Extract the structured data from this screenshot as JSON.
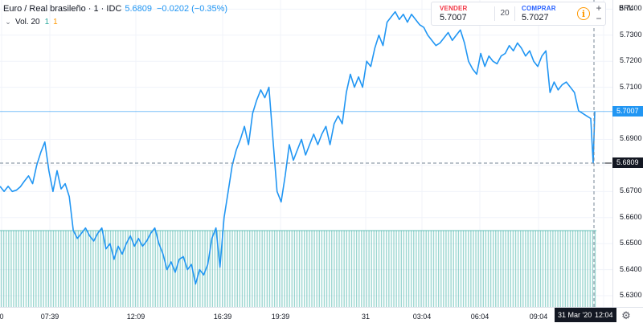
{
  "legend": {
    "symbol_title": "Euro / Real brasileño · 1 · IDC",
    "last_price": "5.6809",
    "change": "−0.0202 (−0.35%)",
    "volume_label": "Vol. 20",
    "volume_value_1": "1",
    "volume_value_2": "1"
  },
  "trade_box": {
    "sell_label": "VENDER",
    "sell_price": "5.7007",
    "quantity": "20",
    "buy_label": "COMPRAR",
    "buy_price": "5.7027"
  },
  "currency": "BRL",
  "last_price_tag": "5.7007",
  "crosshair_price_tag": "5.6809",
  "crosshair_date_tag": "31 Mar '20",
  "crosshair_time_tag": "12:04",
  "colors": {
    "line": "#2196f3",
    "volume": "#26a69a",
    "sell": "#f23645",
    "buy": "#2962ff",
    "info": "#ff9800"
  },
  "chart_data": {
    "type": "line",
    "title": "",
    "xlabel": "",
    "ylabel": "",
    "ylim": [
      5.6257,
      5.7435
    ],
    "y_ticks": [
      "5.7400",
      "5.7300",
      "5.7200",
      "5.7100",
      "5.6900",
      "5.6800",
      "5.6700",
      "5.6600",
      "5.6500",
      "5.6400",
      "5.6300"
    ],
    "x_ticks": [
      "0",
      "07:39",
      "12:09",
      "16:39",
      "19:39",
      "31",
      "03:04",
      "06:04",
      "09:04",
      "12:04"
    ],
    "grid": true,
    "series": [
      {
        "values": [
          5.672,
          5.67,
          5.672,
          5.67,
          5.6705,
          5.6718,
          5.674,
          5.676,
          5.673,
          5.68,
          5.685,
          5.689,
          5.678,
          5.67,
          5.678,
          5.671,
          5.673,
          5.668,
          5.655,
          5.652,
          5.654,
          5.656,
          5.653,
          5.651,
          5.654,
          5.656,
          5.648,
          5.65,
          5.644,
          5.649,
          5.646,
          5.65,
          5.653,
          5.649,
          5.652,
          5.649,
          5.651,
          5.654,
          5.656,
          5.65,
          5.646,
          5.64,
          5.643,
          5.639,
          5.644,
          5.645,
          5.64,
          5.642,
          5.6345,
          5.64,
          5.638,
          5.642,
          5.652,
          5.656,
          5.641,
          5.66,
          5.67,
          5.68,
          5.686,
          5.69,
          5.695,
          5.688,
          5.7,
          5.705,
          5.709,
          5.706,
          5.71,
          5.69,
          5.67,
          5.666,
          5.676,
          5.688,
          5.682,
          5.686,
          5.69,
          5.684,
          5.688,
          5.692,
          5.688,
          5.692,
          5.695,
          5.688,
          5.696,
          5.699,
          5.696,
          5.708,
          5.715,
          5.71,
          5.714,
          5.71,
          5.72,
          5.718,
          5.725,
          5.73,
          5.726,
          5.735,
          5.737,
          5.739,
          5.736,
          5.738,
          5.735,
          5.738,
          5.736,
          5.734,
          5.733,
          5.73,
          5.728,
          5.726,
          5.727,
          5.729,
          5.731,
          5.728,
          5.73,
          5.732,
          5.727,
          5.72,
          5.717,
          5.715,
          5.723,
          5.718,
          5.722,
          5.72,
          5.719,
          5.722,
          5.723,
          5.726,
          5.724,
          5.727,
          5.725,
          5.722,
          5.724,
          5.72,
          5.718,
          5.722,
          5.724,
          5.708,
          5.712,
          5.709,
          5.711,
          5.712,
          5.71,
          5.708,
          5.701,
          5.7,
          5.699,
          5.698,
          5.6809,
          5.7007
        ]
      }
    ],
    "volume": {
      "bar_count": 240,
      "value": 1
    }
  }
}
